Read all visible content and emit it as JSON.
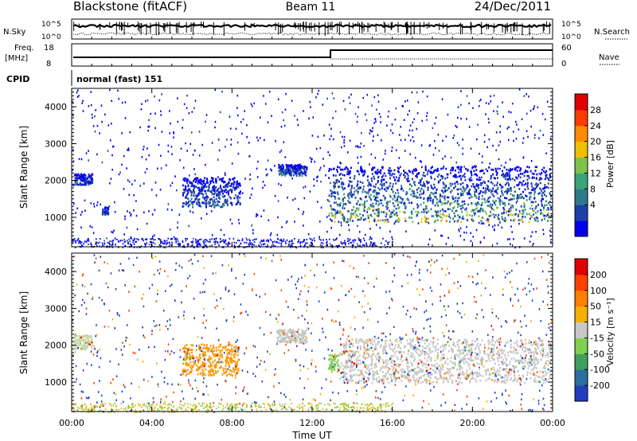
{
  "header": {
    "station": "Blackstone (fitACF)",
    "beam": "Beam 11",
    "date": "24/Dec/2011"
  },
  "summary_panels": {
    "nsky_label": "N.Sky",
    "nsky_ticks": [
      "10^5",
      "10^0"
    ],
    "nsearch_label": "N.Search",
    "freq_label": "Freq.",
    "freq_unit": "[MHz]",
    "freq_ticks": [
      "18",
      "8"
    ],
    "nave_ticks": [
      "60",
      "0"
    ],
    "nave_label": "Nave",
    "cpid_label": "CPID",
    "cpid_value": "normal (fast) 151"
  },
  "chart_data": [
    {
      "type": "heatmap",
      "name": "power-panel",
      "ylabel": "Slant Range [km]",
      "ylim": [
        200,
        4500
      ],
      "yticks": [
        "4000",
        "3000",
        "2000",
        "1000"
      ],
      "xlim": [
        0,
        24
      ],
      "colorbar": {
        "label": "Power [dB]",
        "ticks": [
          "28",
          "24",
          "20",
          "16",
          "12",
          "8",
          "4"
        ],
        "colors": [
          "#0000ee",
          "#1f3fa8",
          "#2f7a8a",
          "#3ba27a",
          "#7fc24a",
          "#f0c000",
          "#ff8a00",
          "#ff3a00",
          "#e00000"
        ]
      },
      "features": [
        {
          "t": [
            0.1,
            1.0
          ],
          "range": [
            1900,
            2200
          ],
          "level": 2
        },
        {
          "t": [
            1.5,
            1.8
          ],
          "range": [
            1100,
            1300
          ],
          "level": 2
        },
        {
          "t": [
            5.5,
            8.4
          ],
          "range": [
            1300,
            2100
          ],
          "level": 3
        },
        {
          "t": [
            10.3,
            11.7
          ],
          "range": [
            2150,
            2450
          ],
          "level": 3
        },
        {
          "t": [
            12.8,
            23.9
          ],
          "range": [
            900,
            2400
          ],
          "level": 6
        }
      ]
    },
    {
      "type": "heatmap",
      "name": "velocity-panel",
      "ylabel": "Slant Range [km]",
      "ylim": [
        200,
        4500
      ],
      "yticks": [
        "4000",
        "3000",
        "2000",
        "1000"
      ],
      "xlabel": "Time UT",
      "xticks": [
        "00:00",
        "04:00",
        "08:00",
        "12:00",
        "16:00",
        "20:00",
        "00:00"
      ],
      "xlim": [
        0,
        24
      ],
      "colorbar": {
        "label": "Velocity [m s⁻¹]",
        "ticks": [
          "200",
          "100",
          "50",
          "15",
          "-15",
          "-50",
          "-100",
          "-200"
        ],
        "colors": [
          "#1f3fbf",
          "#2a6fa0",
          "#3f9f5f",
          "#7fd04f",
          "#c8c8c8",
          "#f5b000",
          "#ff8000",
          "#ff4000",
          "#e00000"
        ]
      },
      "features": [
        {
          "t": [
            0.1,
            1.0
          ],
          "range": [
            1900,
            2300
          ],
          "color": "#c8d8a8"
        },
        {
          "t": [
            5.5,
            8.3
          ],
          "range": [
            1200,
            2050
          ],
          "color": "#ff9a00"
        },
        {
          "t": [
            10.2,
            11.7
          ],
          "range": [
            2100,
            2450
          ],
          "color": "#c8c8c8"
        },
        {
          "t": [
            12.8,
            13.3
          ],
          "range": [
            1300,
            1800
          ],
          "color": "#7fd04f"
        },
        {
          "t": [
            13.3,
            23.9
          ],
          "range": [
            1000,
            2200
          ],
          "color": "#c8c8c8"
        }
      ]
    }
  ]
}
